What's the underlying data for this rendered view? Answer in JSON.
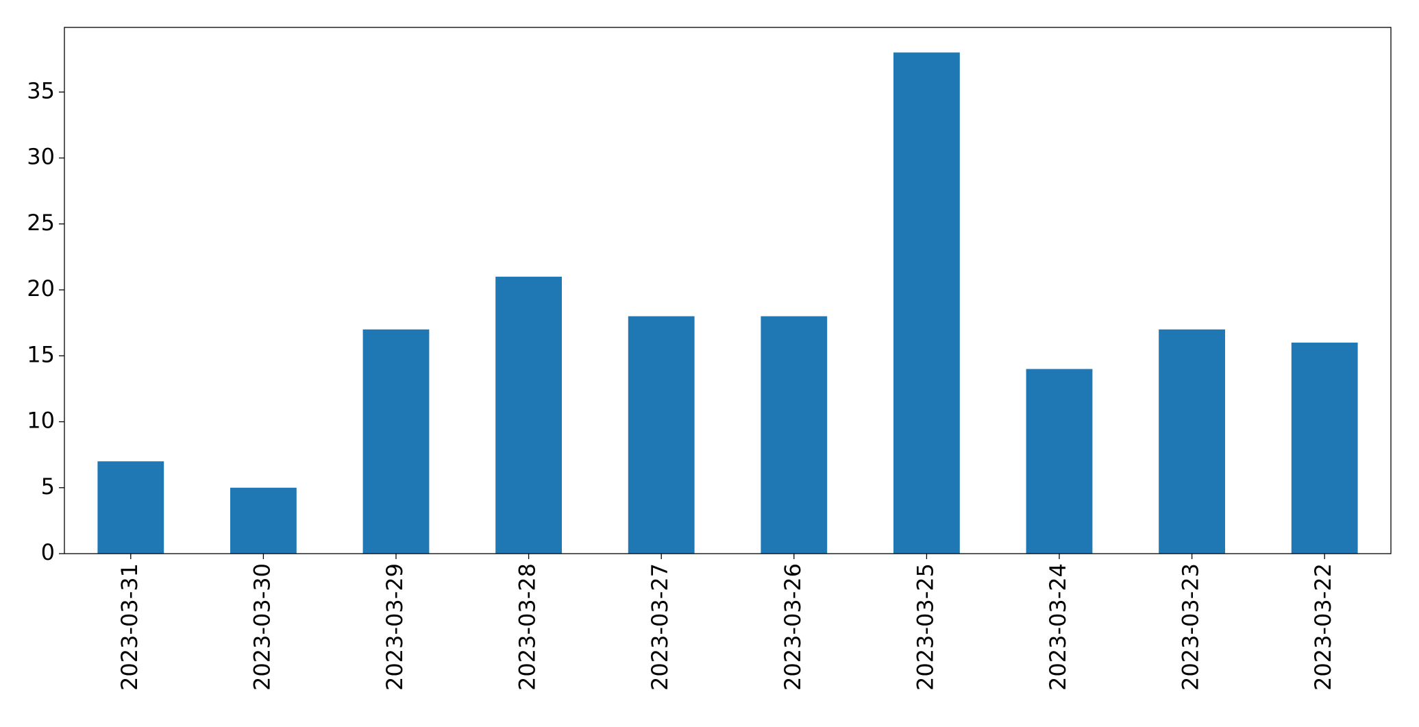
{
  "chart_data": {
    "type": "bar",
    "categories": [
      "2023-03-31",
      "2023-03-30",
      "2023-03-29",
      "2023-03-28",
      "2023-03-27",
      "2023-03-26",
      "2023-03-25",
      "2023-03-24",
      "2023-03-23",
      "2023-03-22"
    ],
    "values": [
      7,
      5,
      17,
      21,
      18,
      18,
      38,
      14,
      17,
      16
    ],
    "color": "#1f77b4",
    "ylim": [
      0,
      39.9
    ],
    "yticks": [
      0,
      5,
      10,
      15,
      20,
      25,
      30,
      35
    ],
    "grid": false
  }
}
